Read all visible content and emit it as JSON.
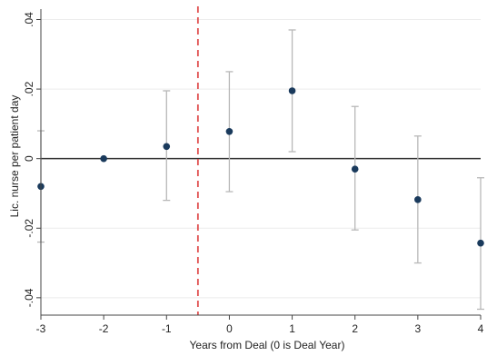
{
  "chart_data": {
    "type": "scatter",
    "xlabel": "Years from Deal (0 is Deal Year)",
    "ylabel": "Lic. nurse per patient day",
    "xlim": [
      -3,
      4
    ],
    "ylim": [
      -0.045,
      0.043
    ],
    "x_ticks": [
      -3,
      -2,
      -1,
      0,
      1,
      2,
      3,
      4
    ],
    "x_tick_labels": [
      "-3",
      "-2",
      "-1",
      "0",
      "1",
      "2",
      "3",
      "4"
    ],
    "y_ticks": [
      -0.04,
      -0.02,
      0,
      0.02,
      0.04
    ],
    "y_tick_labels": [
      "-.04",
      "-.02",
      "0",
      ".02",
      ".04"
    ],
    "grid": true,
    "reference_lines": {
      "horizontal_y": 0,
      "vertical_x": -0.5
    },
    "points": [
      {
        "x": -3,
        "y": -0.008,
        "lo": -0.024,
        "hi": 0.008
      },
      {
        "x": -2,
        "y": 0.0,
        "lo": null,
        "hi": null
      },
      {
        "x": -1,
        "y": 0.0035,
        "lo": -0.012,
        "hi": 0.0195
      },
      {
        "x": 0,
        "y": 0.0078,
        "lo": -0.0095,
        "hi": 0.025
      },
      {
        "x": 1,
        "y": 0.0195,
        "lo": 0.002,
        "hi": 0.037
      },
      {
        "x": 2,
        "y": -0.003,
        "lo": -0.0205,
        "hi": 0.015
      },
      {
        "x": 3,
        "y": -0.0118,
        "lo": -0.03,
        "hi": 0.0065
      },
      {
        "x": 4,
        "y": -0.0243,
        "lo": -0.0433,
        "hi": -0.0055
      }
    ],
    "colors": {
      "marker": "#1a3a5c",
      "errorbar": "#b8b8b8",
      "zero_line": "#333333",
      "deal_line": "#e05050",
      "grid": "#ececec",
      "axis": "#444444"
    }
  }
}
